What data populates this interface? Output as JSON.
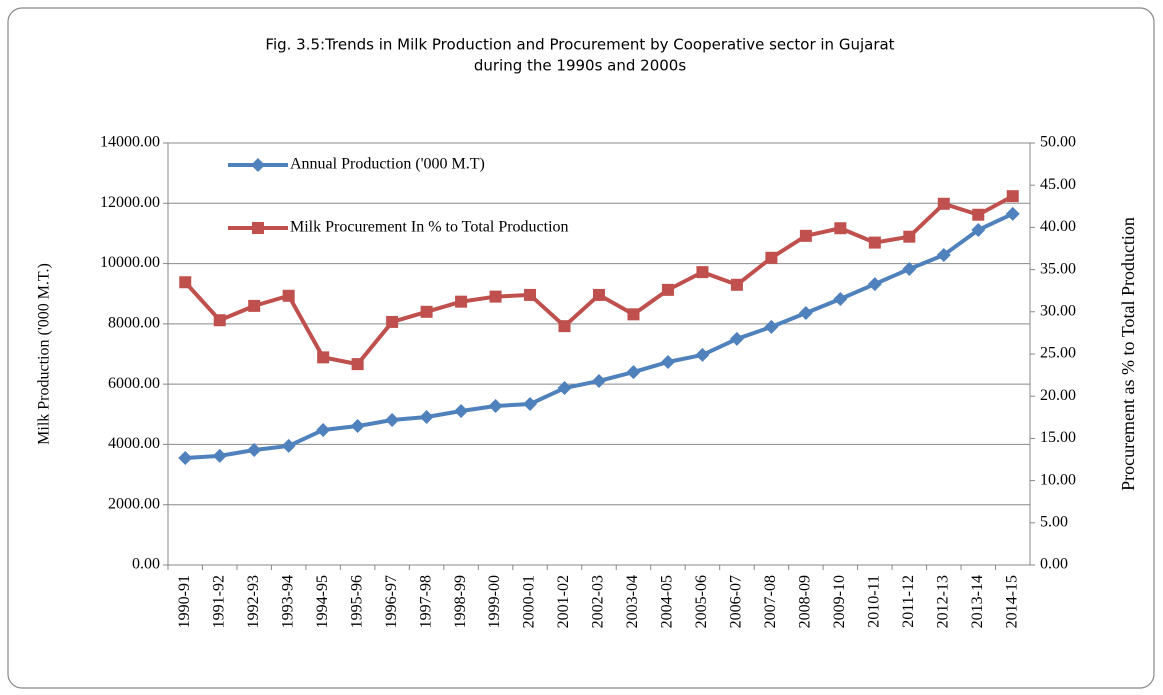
{
  "chart_data": {
    "type": "line",
    "title": [
      "Fig. 3.5:Trends in Milk Production and Procurement by Cooperative sector in Gujarat",
      "during the 1990s and 2000s"
    ],
    "ylabel": "Milk Production ('000 M.T.)",
    "y2label": "Procurement as % to Total Production",
    "categories": [
      "1990-91",
      "1991-92",
      "1992-93",
      "1993-94",
      "1994-95",
      "1995-96",
      "1996-97",
      "1997-98",
      "1998-99",
      "1999-00",
      "2000-01",
      "2001-02",
      "2002-03",
      "2003-04",
      "2004-05",
      "2005-06",
      "2006-07",
      "2007-08",
      "2008-09",
      "2009-10",
      "2010-11",
      "2011-12",
      "2012-13",
      "2013-14",
      "2014-15"
    ],
    "series": [
      {
        "name": "Annual Production ('000 M.T)",
        "color": "#4f81bd",
        "marker": "diamond",
        "values": [
          3550,
          3620,
          3815,
          3950,
          4480,
          4610,
          4810,
          4910,
          5110,
          5275,
          5340,
          5870,
          6105,
          6400,
          6735,
          6970,
          7500,
          7900,
          8360,
          8825,
          9320,
          9820,
          10285,
          11115,
          11650
        ]
      },
      {
        "name": "Milk Procurement In % to Total Production",
        "color": "#c0504d",
        "marker": "square",
        "axis": "y2",
        "values": [
          33.5,
          29.0,
          30.7,
          31.9,
          24.6,
          23.8,
          28.8,
          30.0,
          31.2,
          31.8,
          32.0,
          28.3,
          32.0,
          29.7,
          32.6,
          34.7,
          33.2,
          36.4,
          39.0,
          39.9,
          38.2,
          38.9,
          42.8,
          41.5,
          43.7
        ]
      }
    ],
    "ylim": [
      0,
      14000
    ],
    "yticks": [
      {
        "value": 0,
        "label": "0.00"
      },
      {
        "value": 2000,
        "label": "2000.00"
      },
      {
        "value": 4000,
        "label": "4000.00"
      },
      {
        "value": 6000,
        "label": "6000.00"
      },
      {
        "value": 8000,
        "label": "8000.00"
      },
      {
        "value": 10000,
        "label": "10000.00"
      },
      {
        "value": 12000,
        "label": "12000.00"
      },
      {
        "value": 14000,
        "label": "14000.00"
      }
    ],
    "y2lim": [
      0,
      50
    ],
    "y2ticks": [
      {
        "value": 0,
        "label": "0.00"
      },
      {
        "value": 5,
        "label": "5.00"
      },
      {
        "value": 10,
        "label": "10.00"
      },
      {
        "value": 15,
        "label": "15.00"
      },
      {
        "value": 20,
        "label": "20.00"
      },
      {
        "value": 25,
        "label": "25.00"
      },
      {
        "value": 30,
        "label": "30.00"
      },
      {
        "value": 35,
        "label": "35.00"
      },
      {
        "value": 40,
        "label": "40.00"
      },
      {
        "value": 45,
        "label": "45.00"
      },
      {
        "value": 50,
        "label": "50.00"
      }
    ],
    "grid": true,
    "legend": "upper left"
  }
}
